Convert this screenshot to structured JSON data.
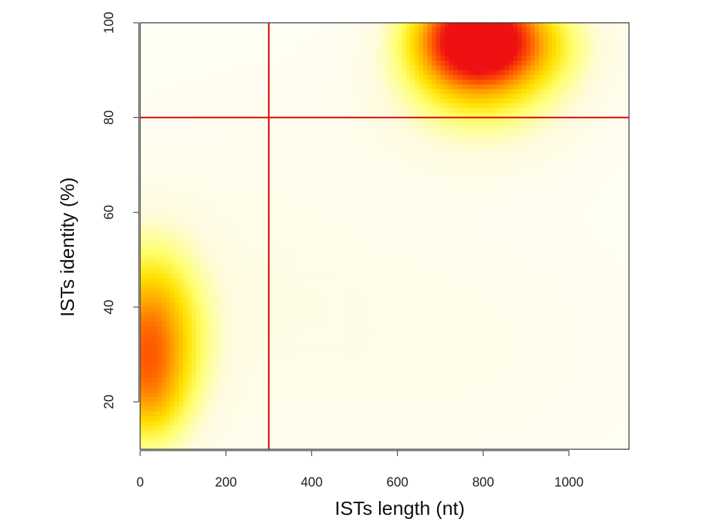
{
  "chart_data": {
    "type": "heatmap",
    "title": "",
    "xlabel": "ISTs length (nt)",
    "ylabel": "ISTs identity (%)",
    "xlim": [
      0,
      1140
    ],
    "ylim": [
      10,
      100
    ],
    "x_ticks": [
      0,
      200,
      400,
      600,
      800,
      1000
    ],
    "y_ticks": [
      20,
      40,
      60,
      80,
      100
    ],
    "colormap": [
      "#ffffff",
      "#fffbdc",
      "#ffff6e",
      "#ffe200",
      "#ffa500",
      "#ff5500",
      "#ee1111"
    ],
    "density_clusters": [
      {
        "x": 775,
        "y": 97,
        "sx": 100,
        "sy": 8,
        "weight": 1.0
      },
      {
        "x": 900,
        "y": 96,
        "sx": 110,
        "sy": 7,
        "weight": 0.28
      },
      {
        "x": 800,
        "y": 85,
        "sx": 160,
        "sy": 10,
        "weight": 0.22
      },
      {
        "x": 20,
        "y": 33,
        "sx": 85,
        "sy": 13,
        "weight": 0.7
      },
      {
        "x": 15,
        "y": 20,
        "sx": 60,
        "sy": 7,
        "weight": 0.18
      },
      {
        "x": 750,
        "y": 32,
        "sx": 260,
        "sy": 18,
        "weight": 0.05
      },
      {
        "x": 250,
        "y": 45,
        "sx": 250,
        "sy": 25,
        "weight": 0.06
      }
    ],
    "reference_lines": [
      {
        "axis": "x",
        "value": 300,
        "color": "#dd0000"
      },
      {
        "axis": "y",
        "value": 80,
        "color": "#dd0000"
      }
    ],
    "grid": false
  }
}
